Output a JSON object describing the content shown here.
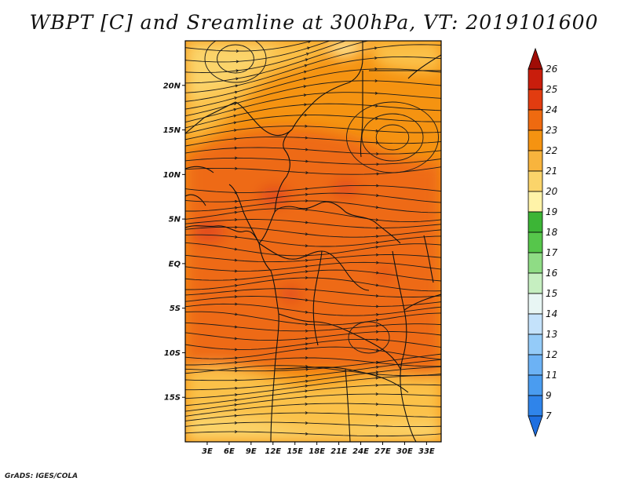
{
  "title": "WBPT [C] and Sreamline at 300hPa, VT: 2019101600",
  "credit": "GrADS: IGES/COLA",
  "map": {
    "lat_labels": [
      "20N",
      "15N",
      "10N",
      "5N",
      "EQ",
      "5S",
      "10S",
      "15S"
    ],
    "lon_labels": [
      "3E",
      "6E",
      "9E",
      "12E",
      "15E",
      "18E",
      "21E",
      "24E",
      "27E",
      "30E",
      "33E"
    ],
    "lat_values": [
      20,
      15,
      10,
      5,
      0,
      -5,
      -10,
      -15
    ],
    "lon_values": [
      3,
      6,
      9,
      12,
      15,
      18,
      21,
      24,
      27,
      30,
      33
    ],
    "extent": {
      "lon_min": 0,
      "lon_max": 35,
      "lat_min": -20,
      "lat_max": 25
    }
  },
  "colorbar": {
    "labels": [
      "7",
      "9",
      "11",
      "12",
      "13",
      "14",
      "15",
      "16",
      "17",
      "18",
      "19",
      "20",
      "21",
      "22",
      "23",
      "24",
      "25",
      "26"
    ],
    "colors": [
      "#1e6fe0",
      "#2f84ea",
      "#4a9cf0",
      "#6cb2f5",
      "#94cbf8",
      "#c4e2fb",
      "#e8f6f4",
      "#c6efc1",
      "#8fdc85",
      "#56c64b",
      "#3cb536",
      "#fff3a8",
      "#fbd46a",
      "#f8b43d",
      "#f59311",
      "#ef6a10",
      "#e23c10",
      "#c91d0c",
      "#a00c06"
    ]
  },
  "colors": {
    "field_low": "#fbc14a",
    "field_mid": "#f59311",
    "field_high": "#ee6a14",
    "field_peak": "#e2481a"
  }
}
